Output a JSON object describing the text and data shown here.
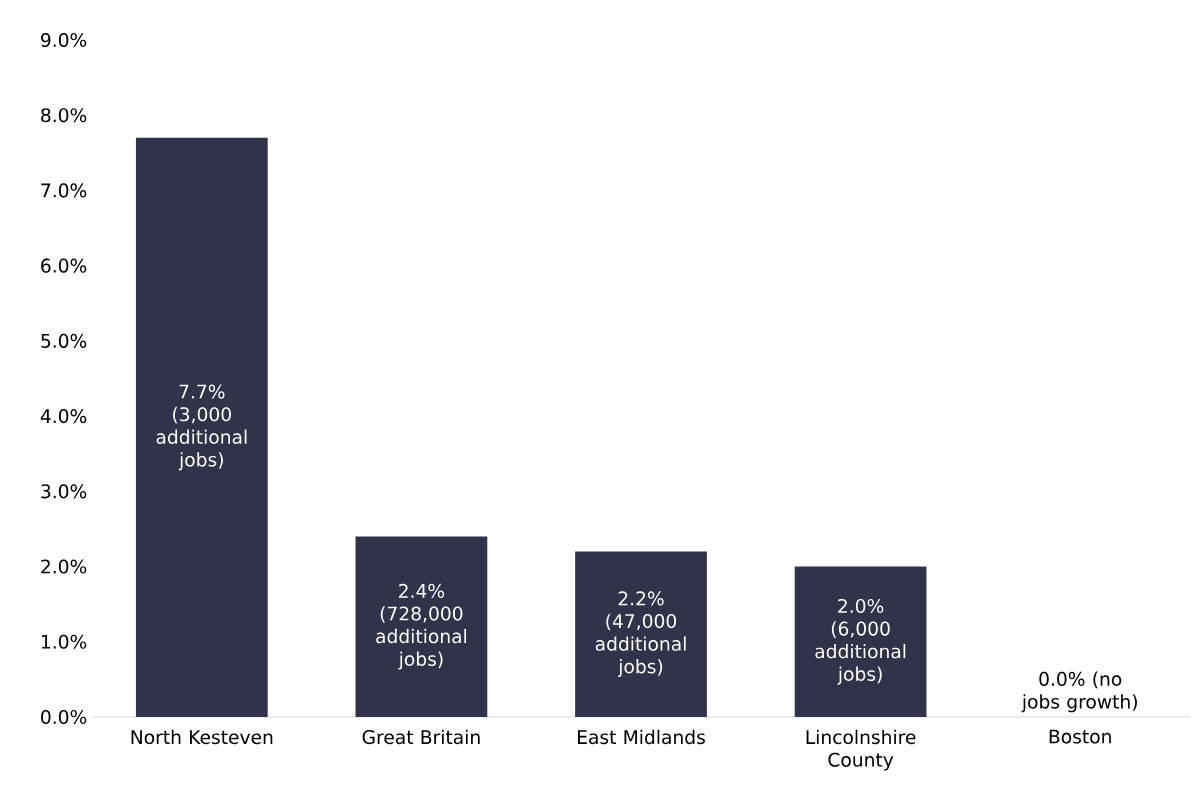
{
  "chart_data": {
    "type": "bar",
    "categories": [
      "North Kesteven",
      "Great Britain",
      "East Midlands",
      "Lincolnshire County",
      "Boston"
    ],
    "values": [
      7.7,
      2.4,
      2.2,
      2.0,
      0.0
    ],
    "color": "#31334a",
    "value_labels": [
      "7.7% (3,000 additional jobs)",
      "2.4% (728,000 additional jobs)",
      "2.2% (47,000 additional jobs)",
      "2.0% (6,000 additional jobs)",
      "0.0% (no jobs growth)"
    ],
    "ylim": [
      0,
      9
    ],
    "yticks": [
      {
        "value": 0,
        "label": "0.0%"
      },
      {
        "value": 1,
        "label": "1.0%"
      },
      {
        "value": 2,
        "label": "2.0%"
      },
      {
        "value": 3,
        "label": "3.0%"
      },
      {
        "value": 4,
        "label": "4.0%"
      },
      {
        "value": 5,
        "label": "5.0%"
      },
      {
        "value": 6,
        "label": "6.0%"
      },
      {
        "value": 7,
        "label": "7.0%"
      },
      {
        "value": 8,
        "label": "8.0%"
      },
      {
        "value": 9,
        "label": "9.0%"
      }
    ]
  }
}
